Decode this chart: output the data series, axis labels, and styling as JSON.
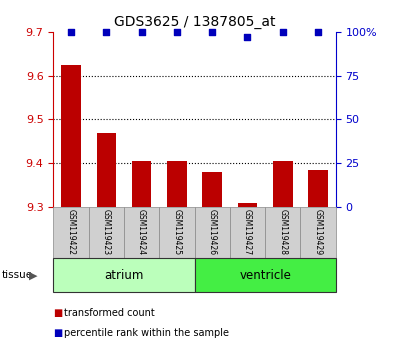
{
  "title": "GDS3625 / 1387805_at",
  "samples": [
    "GSM119422",
    "GSM119423",
    "GSM119424",
    "GSM119425",
    "GSM119426",
    "GSM119427",
    "GSM119428",
    "GSM119429"
  ],
  "red_values": [
    9.625,
    9.47,
    9.405,
    9.405,
    9.38,
    9.31,
    9.405,
    9.385
  ],
  "blue_values": [
    100,
    100,
    100,
    100,
    100,
    97,
    100,
    100
  ],
  "ylim_left": [
    9.3,
    9.7
  ],
  "ylim_right": [
    0,
    100
  ],
  "yticks_left": [
    9.3,
    9.4,
    9.5,
    9.6,
    9.7
  ],
  "yticks_right": [
    0,
    25,
    50,
    75,
    100
  ],
  "yticklabels_right": [
    "0",
    "25",
    "50",
    "75",
    "100%"
  ],
  "grid_values": [
    9.4,
    9.5,
    9.6
  ],
  "tissues": [
    {
      "label": "atrium",
      "start": 0,
      "end": 4
    },
    {
      "label": "ventricle",
      "start": 4,
      "end": 8
    }
  ],
  "tissue_colors": [
    "#BBFFBB",
    "#44EE44"
  ],
  "bar_color": "#BB0000",
  "dot_color": "#0000BB",
  "bar_width": 0.55,
  "left_axis_color": "#CC0000",
  "right_axis_color": "#0000CC",
  "sample_box_color": "#D0D0D0",
  "legend_items": [
    {
      "color": "#BB0000",
      "label": "transformed count"
    },
    {
      "color": "#0000BB",
      "label": "percentile rank within the sample"
    }
  ]
}
